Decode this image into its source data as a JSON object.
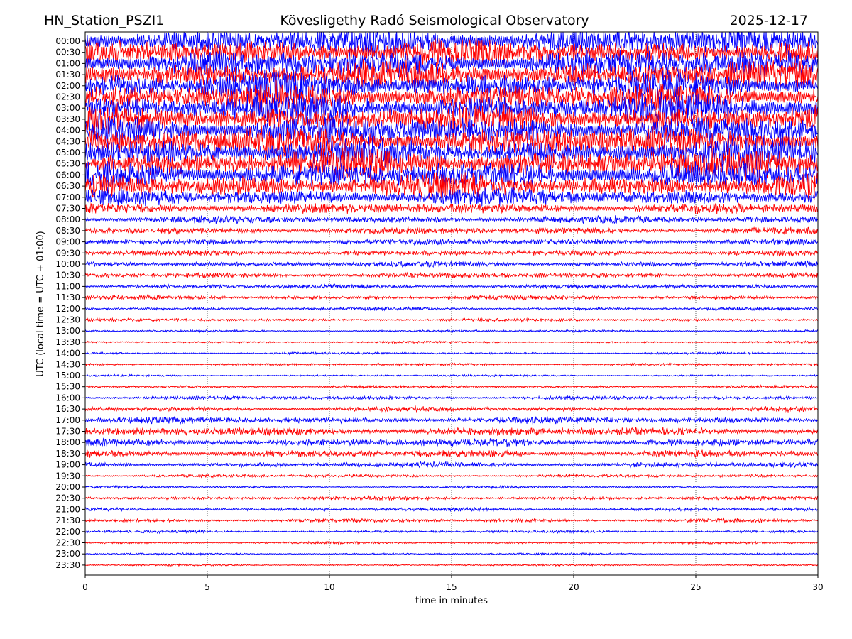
{
  "header": {
    "station": "HN_Station_PSZI1",
    "observatory": "Kövesligethy Radó Seismological Observatory",
    "date": "2025-12-17"
  },
  "chart_data": {
    "type": "line",
    "title": "Kövesligethy Radó Seismological Observatory",
    "xlabel": "time in minutes",
    "ylabel": "UTC (local time = UTC + 01:00)",
    "xlim": [
      0,
      30
    ],
    "x_ticks": [
      "0",
      "5",
      "10",
      "15",
      "20",
      "25",
      "30"
    ],
    "grid": "vertical dotted at x ticks",
    "trace_colors": [
      "#0000ff",
      "#ff0000"
    ],
    "rows": [
      "00:00",
      "00:30",
      "01:00",
      "01:30",
      "02:00",
      "02:30",
      "03:00",
      "03:30",
      "04:00",
      "04:30",
      "05:00",
      "05:30",
      "06:00",
      "06:30",
      "07:00",
      "07:30",
      "08:00",
      "08:30",
      "09:00",
      "09:30",
      "10:00",
      "10:30",
      "11:00",
      "11:30",
      "12:00",
      "12:30",
      "13:00",
      "13:30",
      "14:00",
      "14:30",
      "15:00",
      "15:30",
      "16:00",
      "16:30",
      "17:00",
      "17:30",
      "18:00",
      "18:30",
      "19:00",
      "19:30",
      "20:00",
      "20:30",
      "21:00",
      "21:30",
      "22:00",
      "22:30",
      "23:00",
      "23:30"
    ],
    "relative_amplitude": [
      2.2,
      2.2,
      2.3,
      2.3,
      2.3,
      2.3,
      2.4,
      2.4,
      2.4,
      2.4,
      2.4,
      2.4,
      2.3,
      2.0,
      1.4,
      0.9,
      0.6,
      0.55,
      0.5,
      0.45,
      0.45,
      0.45,
      0.35,
      0.35,
      0.25,
      0.25,
      0.18,
      0.16,
      0.18,
      0.2,
      0.16,
      0.22,
      0.3,
      0.4,
      0.55,
      0.7,
      0.65,
      0.6,
      0.45,
      0.25,
      0.22,
      0.3,
      0.3,
      0.3,
      0.22,
      0.18,
      0.16,
      0.14
    ]
  }
}
